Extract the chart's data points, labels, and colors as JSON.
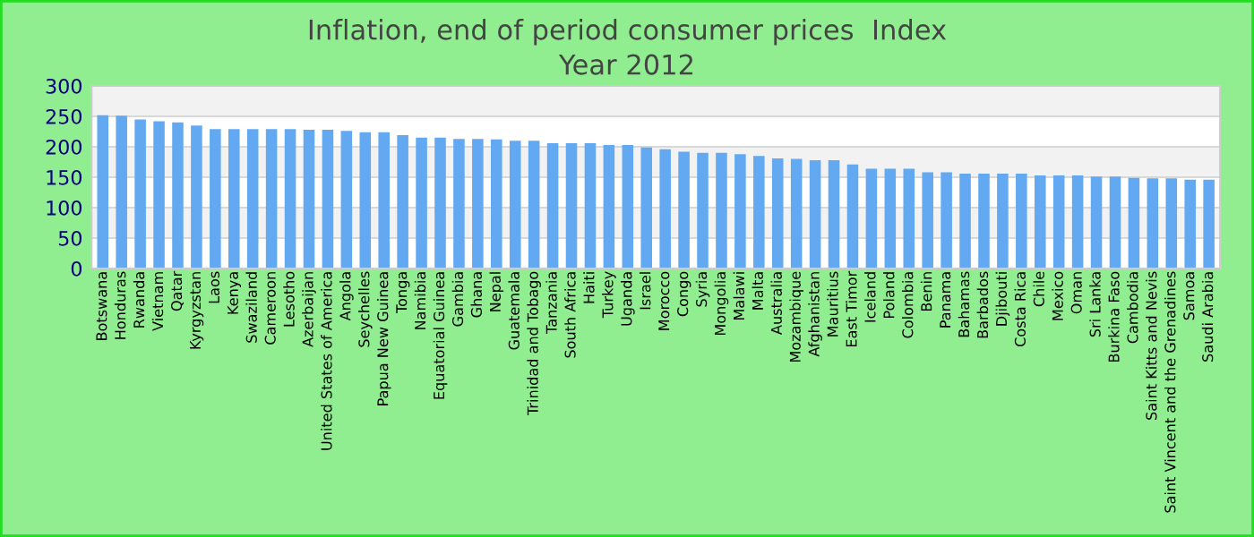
{
  "chart_data": {
    "type": "bar",
    "title": "Inflation, end of period consumer prices  Index",
    "subtitle": "Year 2012",
    "categories": [
      "Botswana",
      "Honduras",
      "Rwanda",
      "Vietnam",
      "Qatar",
      "Kyrgyzstan",
      "Laos",
      "Kenya",
      "Swaziland",
      "Cameroon",
      "Lesotho",
      "Azerbaijan",
      "United States of America",
      "Angola",
      "Seychelles",
      "Papua New Guinea",
      "Tonga",
      "Namibia",
      "Equatorial Guinea",
      "Gambia",
      "Ghana",
      "Nepal",
      "Guatemala",
      "Trinidad and Tobago",
      "Tanzania",
      "South Africa",
      "Haiti",
      "Turkey",
      "Uganda",
      "Israel",
      "Morocco",
      "Congo",
      "Syria",
      "Mongolia",
      "Malawi",
      "Malta",
      "Australia",
      "Mozambique",
      "Afghanistan",
      "Mauritius",
      "East Timor",
      "Iceland",
      "Poland",
      "Colombia",
      "Benin",
      "Panama",
      "Bahamas",
      "Barbados",
      "Djibouti",
      "Costa Rica",
      "Chile",
      "Mexico",
      "Oman",
      "Sri Lanka",
      "Burkina Faso",
      "Cambodia",
      "Saint Kitts and Nevis",
      "Saint Vincent and the Grenadines",
      "Samoa",
      "Saudi Arabia"
    ],
    "values": [
      252,
      251,
      245,
      242,
      240,
      235,
      229,
      229,
      229,
      229,
      229,
      228,
      228,
      226,
      224,
      224,
      219,
      215,
      215,
      213,
      213,
      212,
      210,
      210,
      206,
      206,
      206,
      203,
      203,
      199,
      196,
      192,
      190,
      190,
      188,
      185,
      181,
      180,
      178,
      178,
      171,
      164,
      164,
      164,
      158,
      158,
      156,
      156,
      156,
      156,
      153,
      153,
      153,
      151,
      151,
      149,
      148,
      148,
      146,
      146
    ],
    "color": "#63a9f1",
    "ylim": [
      0,
      300
    ],
    "yticks": [
      0,
      50,
      100,
      150,
      200,
      250,
      300
    ],
    "grid": "y"
  }
}
